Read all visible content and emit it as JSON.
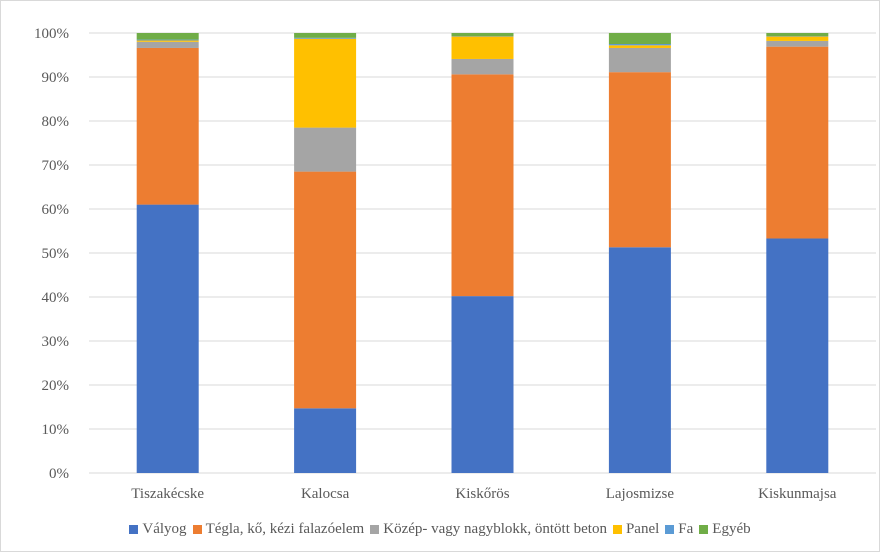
{
  "chart_data": {
    "type": "bar",
    "stacked": true,
    "percent": true,
    "categories": [
      "Tiszakécske",
      "Kalocsa",
      "Kiskőrös",
      "Lajosmizse",
      "Kiskunmajsa"
    ],
    "series": [
      {
        "name": "Vályog",
        "color": "#4472C4",
        "values": [
          61.0,
          14.7,
          40.2,
          51.3,
          53.3
        ]
      },
      {
        "name": "Tégla, kő, kézi falazóelem",
        "color": "#ED7D31",
        "values": [
          35.6,
          53.8,
          50.4,
          39.8,
          43.6
        ]
      },
      {
        "name": "Közép- vagy nagyblokk, öntött beton",
        "color": "#A5A5A5",
        "values": [
          1.4,
          10.0,
          3.5,
          5.5,
          1.3
        ]
      },
      {
        "name": "Panel",
        "color": "#FFC000",
        "values": [
          0.3,
          20.2,
          5.1,
          0.6,
          1.0
        ]
      },
      {
        "name": "Fa",
        "color": "#5B9BD5",
        "values": [
          0.2,
          0.2,
          0.1,
          0.3,
          0.1
        ]
      },
      {
        "name": "Egyéb",
        "color": "#70AD47",
        "values": [
          1.5,
          1.1,
          0.7,
          2.5,
          0.7
        ]
      }
    ],
    "ylim": [
      0,
      100
    ],
    "yticks": [
      "0%",
      "10%",
      "20%",
      "30%",
      "40%",
      "50%",
      "60%",
      "70%",
      "80%",
      "90%",
      "100%"
    ],
    "grid": true,
    "legend_position": "bottom"
  }
}
